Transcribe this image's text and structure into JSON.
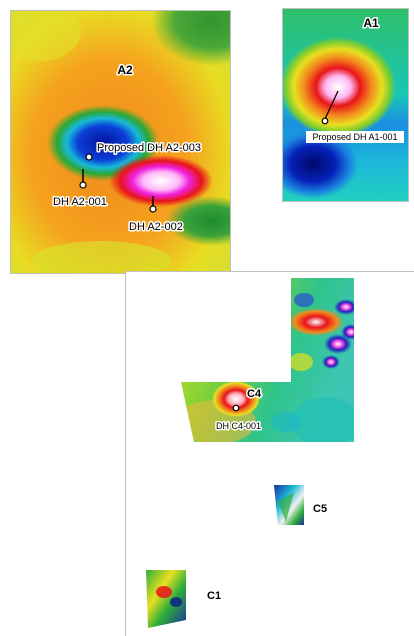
{
  "panels": {
    "a2": {
      "title": "A2",
      "drill_holes": [
        {
          "label": "Proposed DH A2-003"
        },
        {
          "label": "DH A2-001"
        },
        {
          "label": "DH A2-002"
        }
      ]
    },
    "a1": {
      "title": "A1",
      "drill_holes": [
        {
          "label": "Proposed DH A1-001"
        }
      ]
    },
    "c": {
      "areas": [
        {
          "title": "C4",
          "hole": "DH C4-001"
        },
        {
          "title": "C5"
        },
        {
          "title": "C1"
        }
      ]
    }
  },
  "colors": {
    "low": "#0a1a8c",
    "mid_low": "#18b6d0",
    "mid": "#2fae3a",
    "mid_high": "#e9e020",
    "high": "#f28a1c",
    "very_high": "#e8141a",
    "peak": "#ff4ff0"
  }
}
